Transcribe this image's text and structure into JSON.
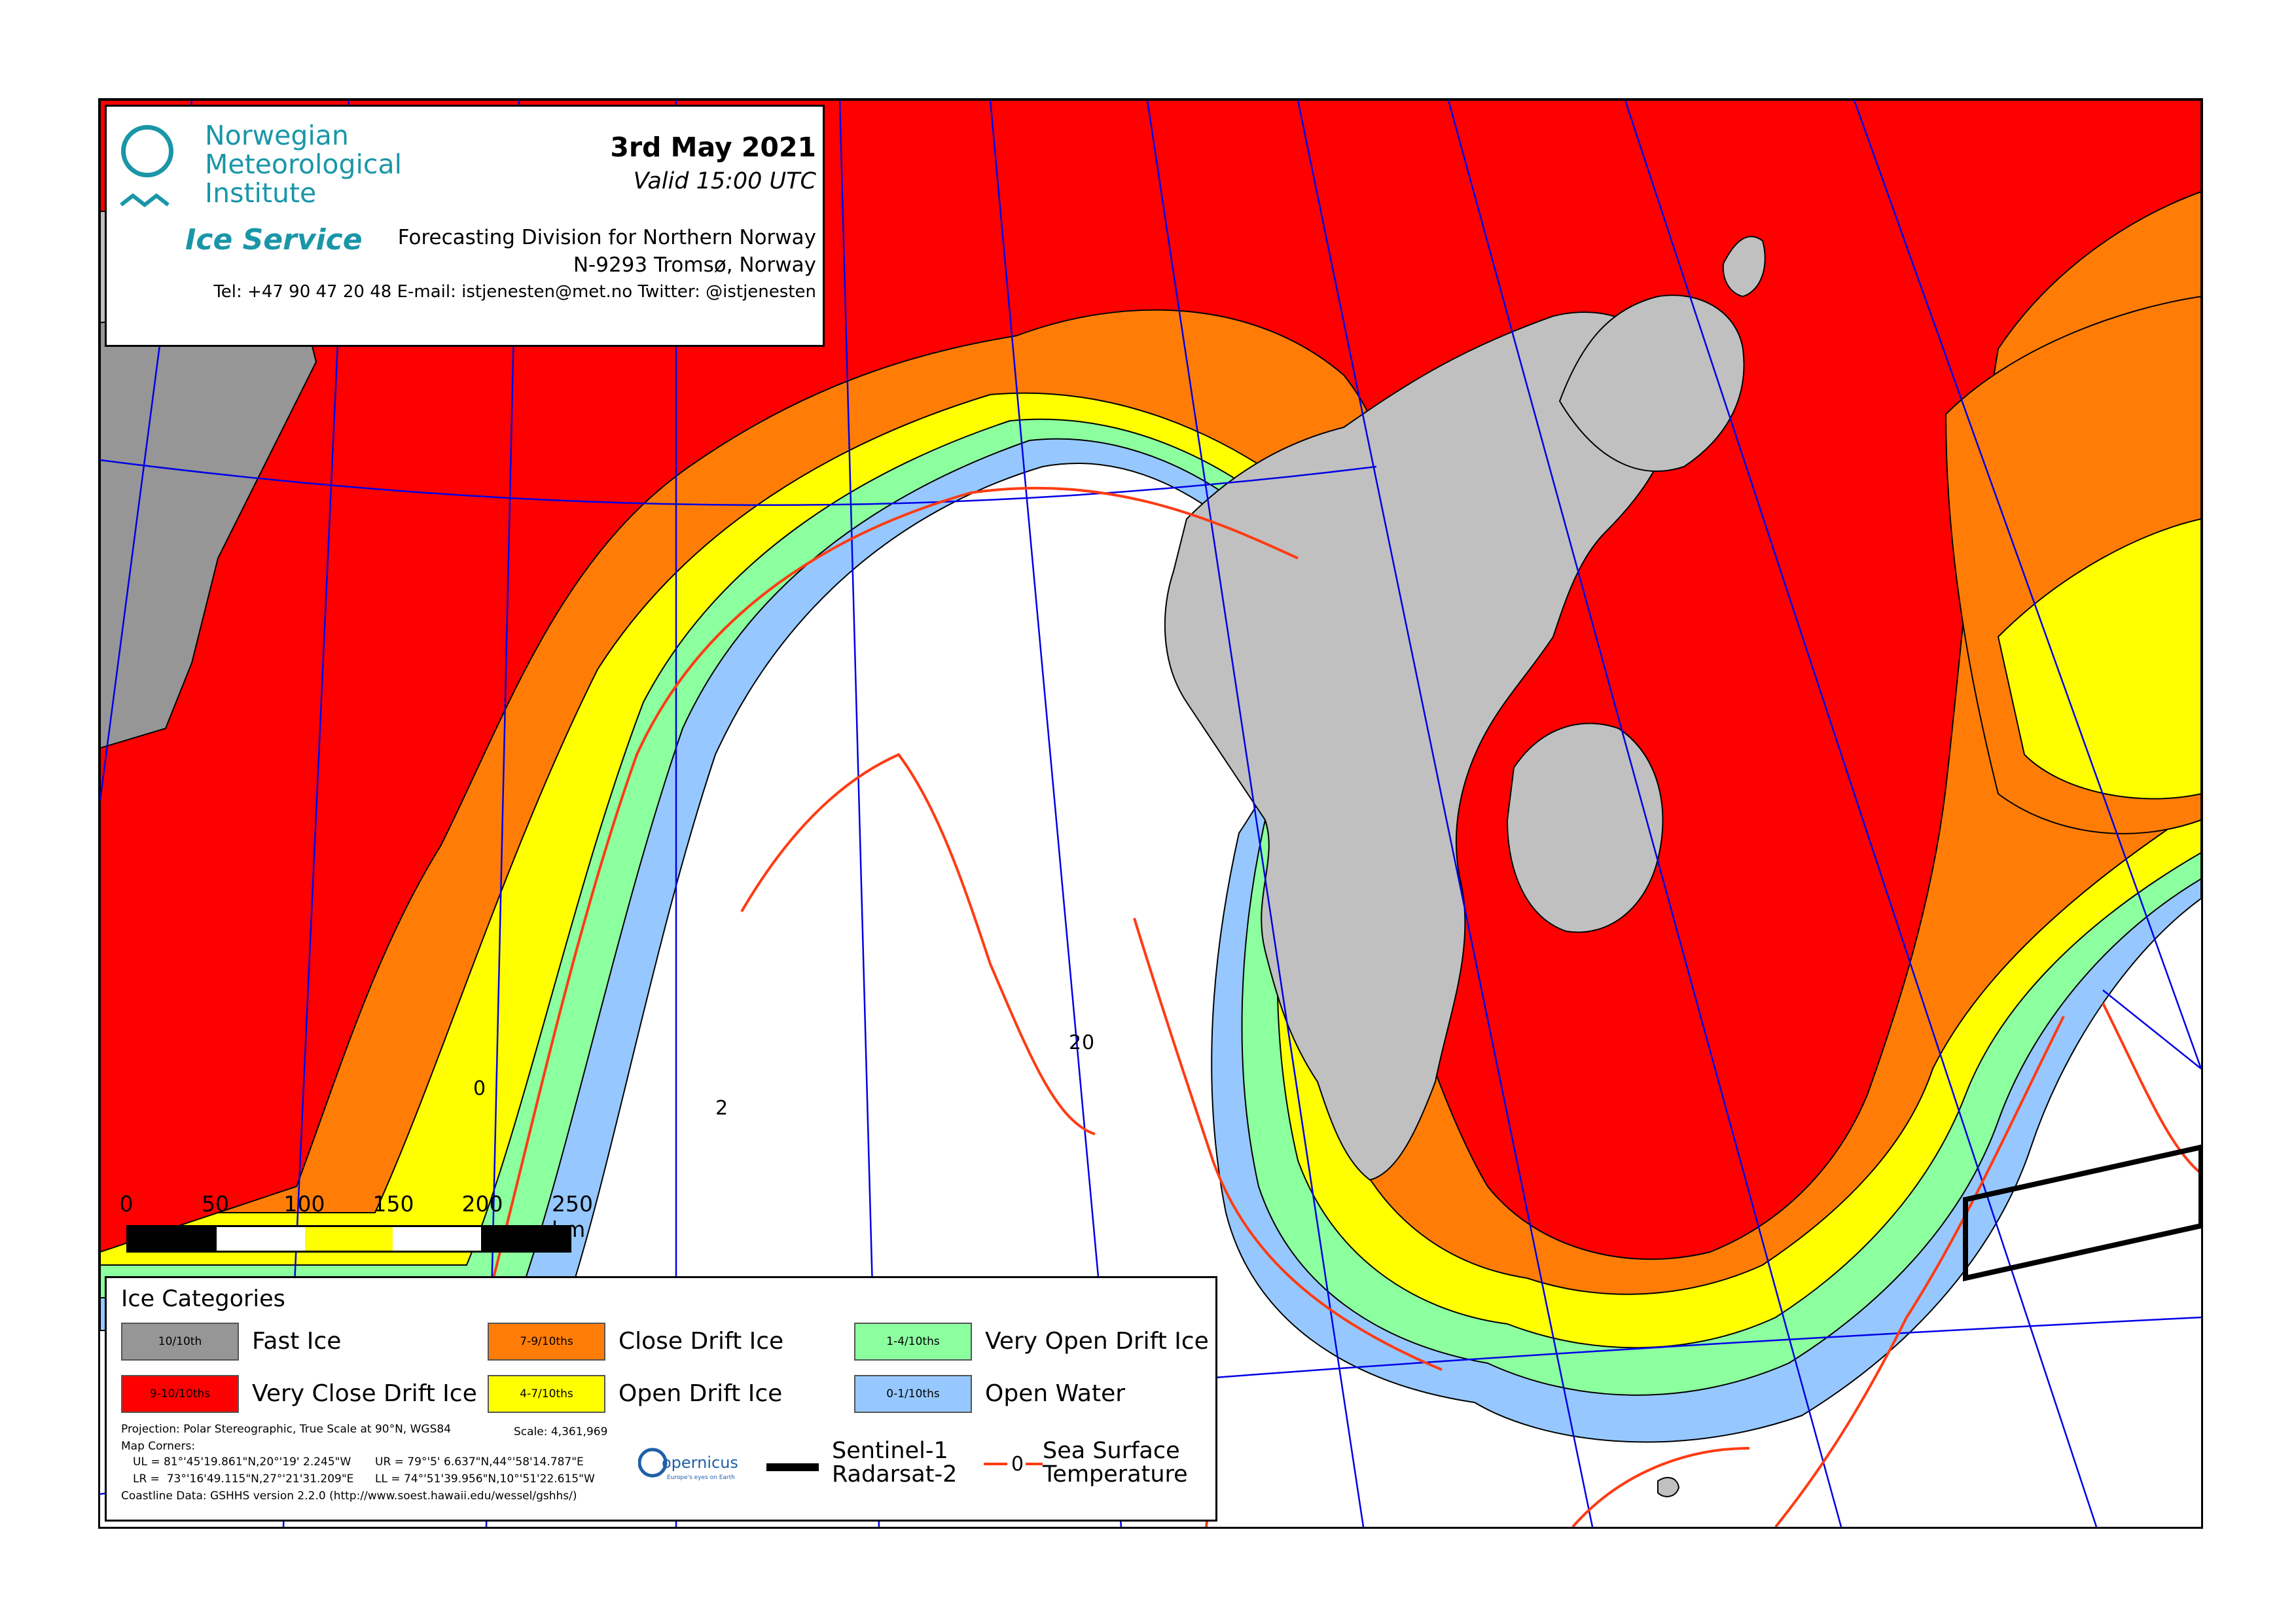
{
  "header": {
    "org_line1": "Norwegian",
    "org_line2": "Meteorological",
    "org_line3": "Institute",
    "service": "Ice Service",
    "date": "3rd May 2021",
    "valid": "Valid 15:00 UTC",
    "division": "Forecasting Division for Northern Norway",
    "address": "N-9293 Tromsø, Norway",
    "contact": "Tel: +47 90 47 20 48   E-mail: istjenesten@met.no   Twitter: @istjenesten"
  },
  "scale": {
    "labels": [
      "0",
      "50",
      "100",
      "150",
      "200",
      "250 km"
    ],
    "segment_colors": [
      "#000000",
      "#ffffff",
      "#ffff00",
      "#ffffff",
      "#000000"
    ]
  },
  "map": {
    "contour_labels": [
      "0",
      "2",
      "2",
      "0"
    ],
    "colors": {
      "fast_ice": "#969696",
      "very_close": "#ff0000",
      "close": "#ff7d07",
      "open": "#ffff00",
      "very_open": "#8cff9f",
      "open_water": "#96c8ff",
      "land": "#c0c0c0",
      "graticule": "#0000e6",
      "sst": "#ff3b14"
    }
  },
  "legend": {
    "title": "Ice Categories",
    "categories": [
      {
        "swatch": "10/10th",
        "label": "Fast Ice",
        "color": "#969696"
      },
      {
        "swatch": "9-10/10ths",
        "label": "Very Close Drift Ice",
        "color": "#ff0000"
      },
      {
        "swatch": "7-9/10ths",
        "label": "Close Drift Ice",
        "color": "#ff7d07"
      },
      {
        "swatch": "4-7/10ths",
        "label": "Open Drift Ice",
        "color": "#ffff00"
      },
      {
        "swatch": "1-4/10ths",
        "label": "Very Open Drift Ice",
        "color": "#8cff9f"
      },
      {
        "swatch": "0-1/10ths",
        "label": "Open Water",
        "color": "#96c8ff"
      }
    ],
    "projection": "Projection: Polar Stereographic, True Scale at 90°N, WGS84",
    "scale_text": "Scale: 4,361,969",
    "corners_title": "Map Corners:",
    "ul": "UL = 81°'45'19.861\"N,20°'19' 2.245\"W",
    "ur": "UR = 79°'5' 6.637\"N,44°'58'14.787\"E",
    "lr": "LR =  73°'16'49.115\"N,27°'21'31.209\"E",
    "ll": "LL = 74°'51'39.956\"N,10°'51'22.615\"W",
    "coastline": "Coastline Data: GSHHS version 2.2.0 (http://www.soest.hawaii.edu/wessel/gshhs/)",
    "copernicus": "opernicus",
    "copernicus_sub": "Europe's eyes on Earth",
    "sentinel1": "Sentinel-1",
    "radarsat2": "Radarsat-2",
    "sst_symbol": "0",
    "sst1": "Sea Surface",
    "sst2": "Temperature"
  }
}
